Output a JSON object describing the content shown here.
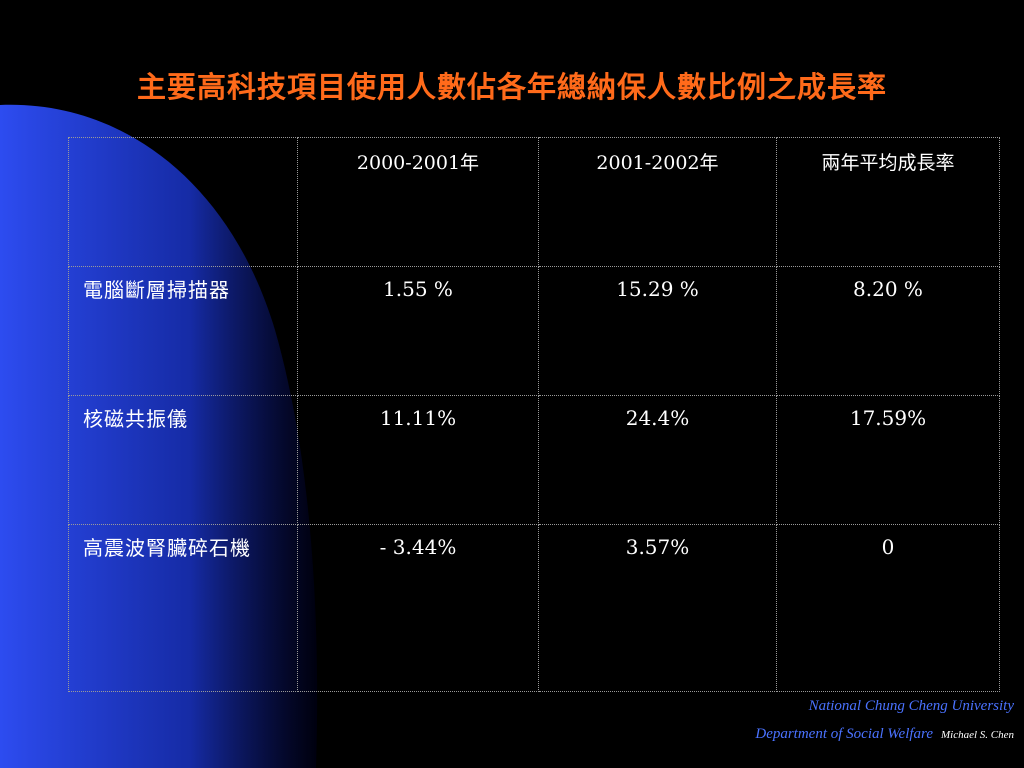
{
  "slide": {
    "title": "主要高科技項目使用人數佔各年總納保人數比例之成長率",
    "colors": {
      "background": "#000000",
      "title": "#ff6a1a",
      "swoosh": "#2540d8",
      "footer": "#4a72ff",
      "text": "#ffffff"
    }
  },
  "table": {
    "headers": [
      "",
      "2000-2001年",
      "2001-2002年",
      "兩年平均成長率"
    ],
    "rows": [
      {
        "label": "電腦斷層掃描器",
        "values": [
          "1.55 %",
          "15.29 %",
          "8.20 %"
        ]
      },
      {
        "label": "核磁共振儀",
        "values": [
          "11.11%",
          "24.4%",
          "17.59%"
        ]
      },
      {
        "label": "高震波腎臟碎石機",
        "values": [
          "- 3.44%",
          "3.57%",
          "0"
        ]
      }
    ]
  },
  "footer": {
    "university": "National Chung Cheng University",
    "department": "Department of Social Welfare",
    "author": "Michael S. Chen"
  }
}
